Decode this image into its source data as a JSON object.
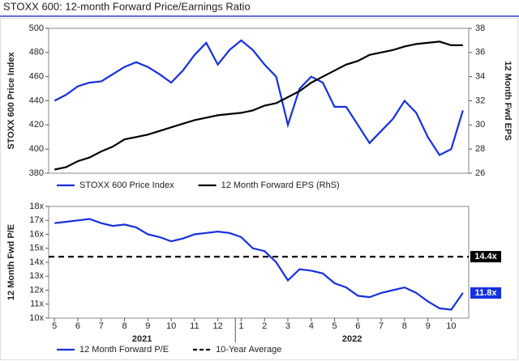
{
  "chart_data": [
    {
      "type": "line",
      "title": "STOXX 600: 12-month Forward Price/Earnings Ratio",
      "ylabel": "STOXX 600 Price Index",
      "y2label": "12 Month Fwd EPS",
      "ylim": [
        380,
        500
      ],
      "yticks": [
        380,
        400,
        420,
        440,
        460,
        480,
        500
      ],
      "y2lim": [
        26,
        38
      ],
      "y2ticks": [
        26,
        28,
        30,
        32,
        34,
        36,
        38
      ],
      "series": [
        {
          "name": "STOXX 600 Price Index",
          "color": "#1530e0",
          "values": [
            440,
            445,
            452,
            455,
            456,
            462,
            468,
            472,
            468,
            462,
            455,
            465,
            478,
            488,
            470,
            482,
            490,
            482,
            470,
            460,
            420,
            450,
            460,
            455,
            435,
            435,
            420,
            405,
            415,
            425,
            440,
            430,
            410,
            395,
            400,
            432
          ]
        },
        {
          "name": "12 Month Forward EPS (RhS)",
          "color": "#000000",
          "axis": "y2",
          "values": [
            26.3,
            26.5,
            27,
            27.3,
            27.8,
            28.2,
            28.8,
            29,
            29.2,
            29.5,
            29.8,
            30.1,
            30.4,
            30.6,
            30.8,
            30.9,
            31,
            31.2,
            31.6,
            31.8,
            32.3,
            32.8,
            33.5,
            34,
            34.5,
            35,
            35.3,
            35.8,
            36,
            36.2,
            36.5,
            36.7,
            36.8,
            36.9,
            36.6,
            36.6
          ]
        }
      ]
    },
    {
      "type": "line",
      "ylabel": "12 Month Fwd P/E",
      "categories": [
        "5",
        null,
        "6",
        null,
        "7",
        null,
        "8",
        null,
        "9",
        null,
        "10",
        null,
        "11",
        null,
        "12",
        null,
        "1",
        null,
        "2",
        null,
        "3",
        null,
        "4",
        null,
        "5",
        null,
        "6",
        null,
        "7",
        null,
        "8",
        null,
        "9",
        null,
        "10",
        null
      ],
      "years": [
        "2021",
        "2022"
      ],
      "ylim": [
        10,
        18
      ],
      "yticks": [
        {
          "value": 10,
          "label": "10x"
        },
        {
          "value": 11,
          "label": "11x"
        },
        {
          "value": 12,
          "label": "12x"
        },
        {
          "value": 13,
          "label": "13x"
        },
        {
          "value": 14,
          "label": "14x"
        },
        {
          "value": 15,
          "label": "15x"
        },
        {
          "value": 16,
          "label": "16x"
        },
        {
          "value": 17,
          "label": "17x"
        },
        {
          "value": 18,
          "label": "18x"
        }
      ],
      "series": [
        {
          "name": "12 Month Forward P/E",
          "color": "#1530e0",
          "values": [
            16.8,
            16.9,
            17,
            17.1,
            16.8,
            16.6,
            16.7,
            16.5,
            16,
            15.8,
            15.5,
            15.7,
            16,
            16.1,
            16.2,
            16.1,
            15.8,
            15,
            14.8,
            14,
            12.7,
            13.5,
            13.4,
            13.2,
            12.5,
            12.2,
            11.6,
            11.5,
            11.8,
            12,
            12.2,
            11.8,
            11.2,
            10.7,
            10.6,
            11.8
          ],
          "value_labels": [
            null,
            null,
            null,
            null,
            null,
            null,
            null,
            null,
            null,
            null,
            null,
            null,
            null,
            null,
            null,
            null,
            null,
            null,
            null,
            null,
            null,
            null,
            null,
            null,
            null,
            null,
            null,
            null,
            null,
            null,
            null,
            null,
            null,
            null,
            null,
            "11.8x"
          ]
        },
        {
          "name": "10-Year Average",
          "color": "#000000",
          "dashed": true,
          "value": 14.4,
          "value_label": "14.4x"
        }
      ]
    }
  ]
}
